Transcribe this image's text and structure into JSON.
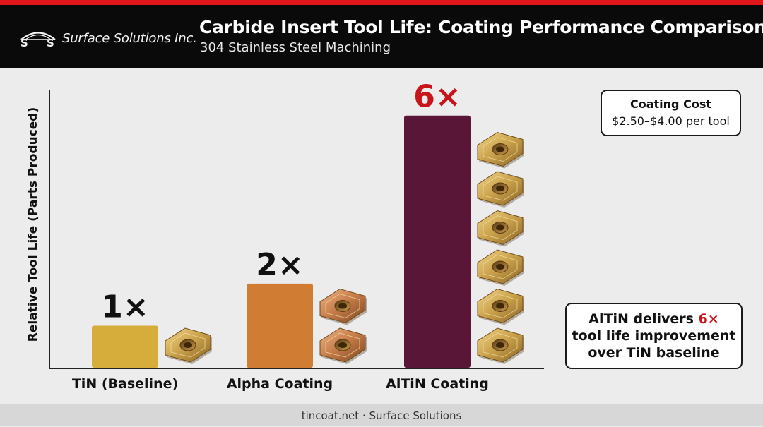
{
  "header": {
    "company": "Surface Solutions Inc.",
    "title": "Carbide Insert Tool Life: Coating Performance Comparison",
    "subtitle": "304 Stainless Steel Machining"
  },
  "colors": {
    "accent": "#e0161b",
    "header_bg": "#0a0a0a",
    "highlight": "#c8151b",
    "tin": "#d6ad3a",
    "alpha": "#d07c33",
    "altin": "#5a1637",
    "insert_gold": "#c9a04a"
  },
  "chart_data": {
    "type": "bar",
    "title": "Carbide Insert Tool Life: Coating Performance Comparison",
    "subtitle": "304 Stainless Steel Machining",
    "ylabel": "Relative Tool Life (Parts Produced)",
    "xlabel": "",
    "categories": [
      "TiN (Baseline)",
      "Alpha Coating",
      "AlTiN Coating"
    ],
    "values": [
      1,
      2,
      6
    ],
    "value_labels": [
      "1×",
      "2×",
      "6×"
    ],
    "label_colors": [
      "#111111",
      "#111111",
      "#c8151b"
    ],
    "bar_colors": [
      "#d6ad3a",
      "#d07c33",
      "#5a1637"
    ],
    "insert_counts": [
      1,
      2,
      6
    ],
    "ylim": [
      0,
      6.6
    ],
    "grid": false,
    "legend": "none"
  },
  "cost_box": {
    "title": "Coating Cost",
    "value": "$2.50–$4.00 per tool"
  },
  "note": {
    "pre": "AlTiN delivers ",
    "highlight": "6×",
    "line2": "tool life improvement",
    "line3": "over TiN baseline"
  },
  "footer": {
    "text": "tincoat.net · Surface Solutions"
  }
}
